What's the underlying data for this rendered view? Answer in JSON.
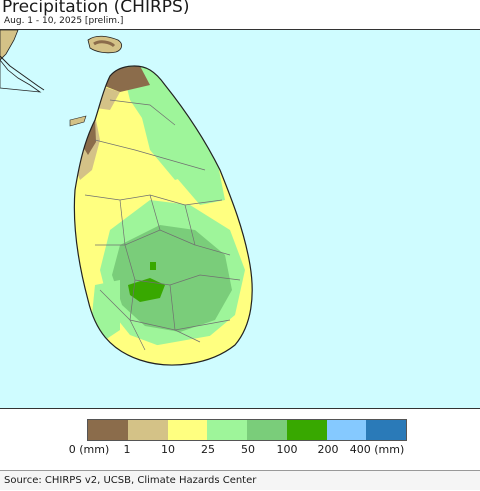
{
  "header": {
    "title": "Precipitation (CHIRPS)",
    "subtitle": "Aug. 1 - 10, 2025 [prelim.]"
  },
  "map": {
    "region": "Sri Lanka",
    "ocean_color": "#cffcff",
    "land_outline_color": "#222222",
    "district_line_color": "#707070",
    "dominant_category": "10-25 mm (yellow)",
    "wettest_area": "south-central highlands (100-200 mm)",
    "driest_area": "northwestern coast near Mannar (0-1 mm)"
  },
  "legend": {
    "labels": [
      "0 (mm)",
      "1",
      "10",
      "25",
      "50",
      "100",
      "200",
      "400 (mm)"
    ],
    "colors": [
      "#8b6c4b",
      "#d4c287",
      "#ffff80",
      "#9ef59a",
      "#7acd7a",
      "#38a800",
      "#85c9ff",
      "#2a7ab8"
    ]
  },
  "footer": {
    "source": "Source: CHIRPS v2, UCSB, Climate Hazards Center"
  }
}
